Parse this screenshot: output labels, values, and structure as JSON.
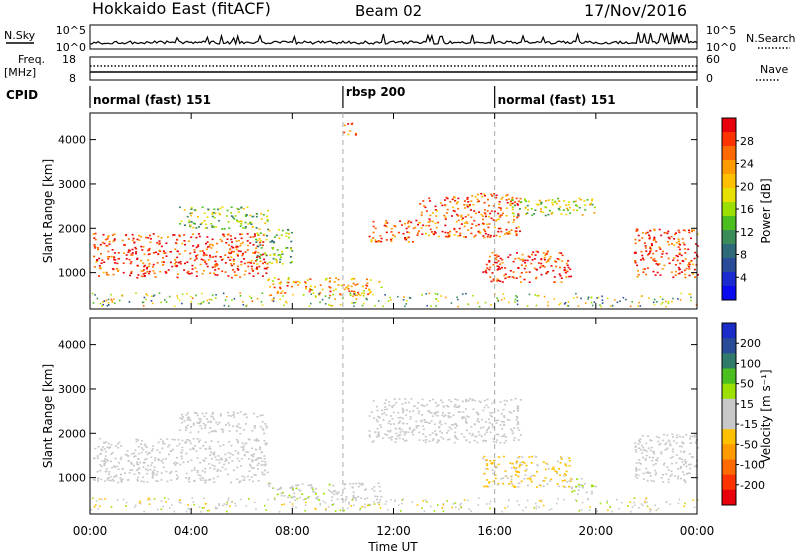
{
  "header": {
    "station": "Hokkaido East (fitACF)",
    "beam": "Beam 02",
    "date": "17/Nov/2016"
  },
  "top_panels": {
    "nsky_label": "N.Sky",
    "nsearch_label": "N.Search",
    "nsky_ticks": [
      "10^5",
      "10^0"
    ],
    "nsearch_ticks": [
      "10^5",
      "10^0"
    ],
    "freq_label_1": "Freq.",
    "freq_label_2": "[MHz]",
    "freq_ticks": [
      "18",
      "8"
    ],
    "nave_label": "Nave",
    "nave_ticks": [
      "60",
      "0"
    ],
    "cpid_label": "CPID"
  },
  "cpid_segments": [
    {
      "label": "normal (fast) 151",
      "start_hour": 0
    },
    {
      "label": "rbsp 200",
      "start_hour": 10
    },
    {
      "label": "normal (fast) 151",
      "start_hour": 16
    }
  ],
  "time_axis": {
    "ticks": [
      "00:00",
      "04:00",
      "08:00",
      "12:00",
      "16:00",
      "20:00",
      "00:00"
    ],
    "label": "Time UT"
  },
  "range_axis": {
    "label": "Slant Range [km]",
    "ticks": [
      "1000",
      "2000",
      "3000",
      "4000"
    ]
  },
  "power_colorbar": {
    "label": "Power [dB]",
    "ticks": [
      "28",
      "24",
      "20",
      "16",
      "12",
      "8",
      "4"
    ],
    "colors": [
      "#e8000b",
      "#ff3300",
      "#ff6a00",
      "#ff9a00",
      "#ffc000",
      "#e8e000",
      "#9be000",
      "#4bbf1f",
      "#3c8c5a",
      "#2f6a7a",
      "#2a4c98",
      "#1a2cd0",
      "#0a0af0"
    ]
  },
  "velocity_colorbar": {
    "label": "Velocity [m s⁻¹]",
    "ticks": [
      "200",
      "100",
      "50",
      "15",
      "-15",
      "-50",
      "-100",
      "-200"
    ],
    "colors": [
      "#1a2cc8",
      "#2a4c98",
      "#2f7a6a",
      "#4bbf1f",
      "#9be000",
      "#c8c8c8",
      "#c8c8c8",
      "#ffc000",
      "#ff9a00",
      "#ff6a00",
      "#ff3300",
      "#e8000b"
    ]
  },
  "chart_data": [
    {
      "type": "heatmap",
      "title": "Power",
      "xlabel": "Time UT",
      "ylabel": "Slant Range [km]",
      "xlim_hours": [
        0,
        24
      ],
      "ylim_km": [
        180,
        4600
      ],
      "colorbar_label": "Power [dB]",
      "echo_regions": [
        {
          "t0": 0.1,
          "t1": 7.0,
          "r0": 900,
          "r1": 1900,
          "power_db": 28
        },
        {
          "t0": 3.5,
          "t1": 7.0,
          "r0": 2000,
          "r1": 2500,
          "power_db": 14
        },
        {
          "t0": 6.5,
          "t1": 8.0,
          "r0": 1200,
          "r1": 2000,
          "power_db": 14
        },
        {
          "t0": 7.0,
          "t1": 11.5,
          "r0": 500,
          "r1": 900,
          "power_db": 22
        },
        {
          "t0": 10.0,
          "t1": 10.5,
          "r0": 4100,
          "r1": 4400,
          "power_db": 24
        },
        {
          "t0": 11.0,
          "t1": 13.0,
          "r0": 1700,
          "r1": 2200,
          "power_db": 26
        },
        {
          "t0": 13.0,
          "t1": 17.0,
          "r0": 1800,
          "r1": 2800,
          "power_db": 26
        },
        {
          "t0": 15.5,
          "t1": 19.0,
          "r0": 800,
          "r1": 1500,
          "power_db": 28
        },
        {
          "t0": 16.5,
          "t1": 20.0,
          "r0": 2300,
          "r1": 2700,
          "power_db": 16
        },
        {
          "t0": 21.5,
          "t1": 24.0,
          "r0": 900,
          "r1": 2000,
          "power_db": 28
        }
      ]
    },
    {
      "type": "heatmap",
      "title": "Velocity",
      "xlabel": "Time UT",
      "ylabel": "Slant Range [km]",
      "xlim_hours": [
        0,
        24
      ],
      "ylim_km": [
        180,
        4600
      ],
      "colorbar_label": "Velocity [m s⁻¹]",
      "echo_regions": [
        {
          "t0": 0.1,
          "t1": 7.0,
          "r0": 900,
          "r1": 1900,
          "velocity": 0
        },
        {
          "t0": 3.5,
          "t1": 7.0,
          "r0": 2000,
          "r1": 2500,
          "velocity": 0
        },
        {
          "t0": 7.0,
          "t1": 9.5,
          "r0": 500,
          "r1": 900,
          "velocity": 30
        },
        {
          "t0": 9.5,
          "t1": 11.5,
          "r0": 500,
          "r1": 900,
          "velocity": 0
        },
        {
          "t0": 11.0,
          "t1": 17.0,
          "r0": 1800,
          "r1": 2800,
          "velocity": 0
        },
        {
          "t0": 15.5,
          "t1": 19.0,
          "r0": 800,
          "r1": 1500,
          "velocity": -40
        },
        {
          "t0": 19.0,
          "t1": 20.0,
          "r0": 600,
          "r1": 1000,
          "velocity": 30
        },
        {
          "t0": 21.5,
          "t1": 24.0,
          "r0": 900,
          "r1": 2000,
          "velocity": 0
        }
      ]
    }
  ]
}
